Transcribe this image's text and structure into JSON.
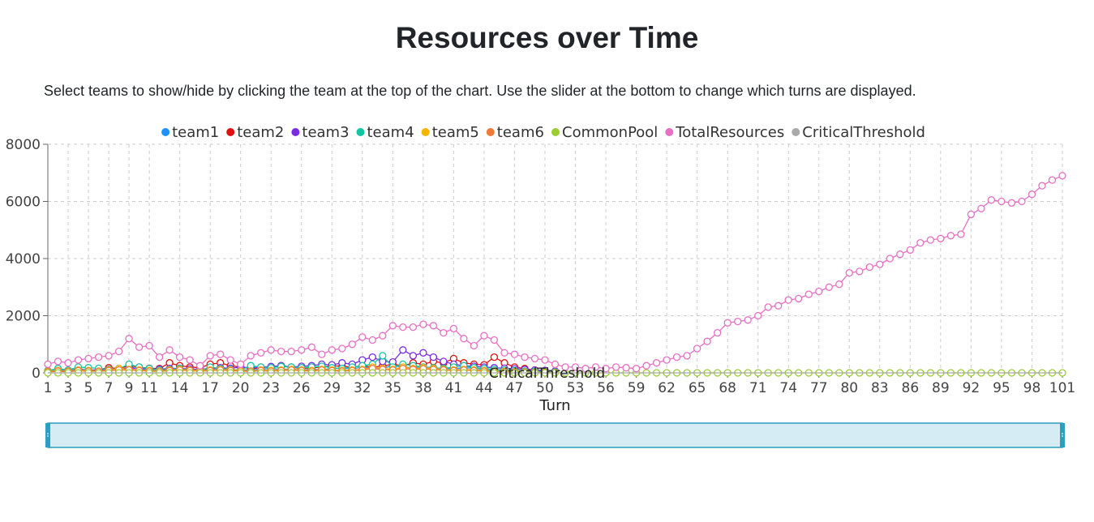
{
  "page": {
    "title": "Resources over Time",
    "instructions": "Select teams to show/hide by clicking the team at the top of the chart. Use the slider at the bottom to change which turns are displayed."
  },
  "chart_data": {
    "type": "line",
    "xlabel": "Turn",
    "ylabel": "",
    "x_range": [
      1,
      101
    ],
    "ylim": [
      0,
      8000
    ],
    "y_ticks": [
      0,
      2000,
      4000,
      6000,
      8000
    ],
    "x_ticks": [
      1,
      3,
      5,
      7,
      9,
      11,
      14,
      17,
      20,
      23,
      26,
      29,
      32,
      35,
      38,
      41,
      44,
      47,
      50,
      53,
      56,
      59,
      62,
      65,
      68,
      71,
      74,
      77,
      80,
      83,
      86,
      89,
      92,
      95,
      98,
      101
    ],
    "grid": true,
    "legend_position": "top-center",
    "reference_line": {
      "name": "CriticalThreshold",
      "label": "CriticalThreshold",
      "value": 0
    },
    "series": [
      {
        "name": "team1",
        "color": "#1e90ff",
        "end_turn": 51,
        "values": [
          60,
          120,
          80,
          150,
          90,
          110,
          130,
          100,
          200,
          150,
          90,
          120,
          80,
          100,
          90,
          70,
          150,
          120,
          100,
          90,
          110,
          130,
          150,
          120,
          140,
          100,
          130,
          110,
          150,
          160,
          140,
          200,
          180,
          160,
          250,
          200,
          180,
          220,
          170,
          160,
          140,
          180,
          160,
          120,
          100,
          90,
          80,
          60,
          80,
          70,
          50
        ]
      },
      {
        "name": "team2",
        "color": "#e01010",
        "end_turn": 51,
        "values": [
          30,
          60,
          40,
          80,
          60,
          120,
          180,
          150,
          250,
          200,
          160,
          150,
          350,
          250,
          200,
          180,
          300,
          350,
          250,
          200,
          150,
          180,
          200,
          250,
          200,
          150,
          180,
          200,
          250,
          230,
          200,
          250,
          200,
          240,
          300,
          250,
          350,
          300,
          400,
          350,
          500,
          350,
          300,
          280,
          550,
          350,
          200,
          150,
          100,
          80,
          60
        ]
      },
      {
        "name": "team3",
        "color": "#7b2be2",
        "end_turn": 51,
        "values": [
          50,
          80,
          70,
          90,
          80,
          100,
          120,
          140,
          150,
          160,
          140,
          130,
          150,
          160,
          140,
          120,
          150,
          180,
          160,
          200,
          180,
          200,
          220,
          250,
          200,
          230,
          250,
          300,
          280,
          350,
          300,
          450,
          550,
          400,
          380,
          800,
          600,
          700,
          550,
          400,
          300,
          250,
          230,
          200,
          180,
          160,
          140,
          120,
          100,
          80,
          60
        ]
      },
      {
        "name": "team4",
        "color": "#13c4a3",
        "end_turn": 51,
        "values": [
          80,
          150,
          100,
          200,
          180,
          160,
          120,
          150,
          300,
          200,
          150,
          100,
          120,
          150,
          100,
          80,
          200,
          150,
          120,
          100,
          250,
          200,
          180,
          220,
          200,
          180,
          200,
          230,
          180,
          150,
          200,
          250,
          300,
          600,
          200,
          300,
          250,
          200,
          180,
          150,
          200,
          250,
          180,
          150,
          120,
          100,
          80,
          60,
          50,
          40,
          30
        ]
      },
      {
        "name": "team5",
        "color": "#f4b400",
        "end_turn": 51,
        "values": [
          50,
          80,
          60,
          100,
          80,
          60,
          100,
          150,
          120,
          100,
          80,
          60,
          100,
          120,
          100,
          80,
          100,
          120,
          100,
          80,
          60,
          100,
          80,
          100,
          120,
          100,
          80,
          120,
          100,
          80,
          100,
          120,
          200,
          150,
          120,
          200,
          150,
          180,
          150,
          120,
          100,
          120,
          100,
          80,
          60,
          50,
          40,
          30,
          20,
          20,
          10
        ]
      },
      {
        "name": "team6",
        "color": "#f07a3a",
        "end_turn": 51,
        "values": [
          40,
          60,
          50,
          80,
          60,
          50,
          80,
          100,
          100,
          80,
          60,
          50,
          80,
          100,
          80,
          60,
          80,
          100,
          80,
          60,
          50,
          80,
          60,
          80,
          100,
          80,
          60,
          100,
          80,
          60,
          80,
          100,
          150,
          120,
          100,
          150,
          120,
          140,
          120,
          100,
          80,
          100,
          80,
          60,
          50,
          40,
          30,
          20,
          15,
          10,
          5
        ]
      },
      {
        "name": "CommonPool",
        "color": "#9acd32",
        "end_turn": 101,
        "values": [
          0,
          0,
          0,
          0,
          0,
          0,
          0,
          0,
          0,
          0,
          0,
          0,
          0,
          0,
          0,
          0,
          0,
          0,
          0,
          0,
          0,
          0,
          0,
          0,
          0,
          0,
          0,
          0,
          0,
          0,
          0,
          0,
          0,
          0,
          0,
          0,
          0,
          0,
          0,
          0,
          0,
          0,
          0,
          0,
          0,
          0,
          0,
          0,
          0,
          0,
          0,
          0,
          0,
          0,
          0,
          0,
          0,
          0,
          0,
          0,
          0,
          0,
          0,
          0,
          0,
          0,
          0,
          0,
          0,
          0,
          0,
          0,
          0,
          0,
          0,
          0,
          0,
          0,
          0,
          0,
          0,
          0,
          0,
          0,
          0,
          0,
          0,
          0,
          0,
          0,
          0,
          0,
          0,
          0,
          0,
          0,
          0,
          0,
          0,
          0,
          0
        ]
      },
      {
        "name": "TotalResources",
        "color": "#e86fc4",
        "end_turn": 101,
        "values": [
          300,
          400,
          350,
          450,
          500,
          550,
          600,
          750,
          1200,
          900,
          950,
          550,
          800,
          550,
          450,
          250,
          600,
          650,
          450,
          300,
          600,
          700,
          800,
          750,
          750,
          800,
          900,
          650,
          800,
          850,
          1000,
          1250,
          1150,
          1300,
          1650,
          1600,
          1600,
          1700,
          1650,
          1400,
          1550,
          1200,
          950,
          1300,
          1150,
          700,
          650,
          550,
          500,
          450,
          300,
          200,
          200,
          150,
          200,
          150,
          200,
          180,
          150,
          250,
          350,
          450,
          550,
          600,
          850,
          1100,
          1400,
          1750,
          1800,
          1850,
          2000,
          2300,
          2350,
          2550,
          2600,
          2750,
          2850,
          3000,
          3100,
          3500,
          3550,
          3700,
          3800,
          4000,
          4150,
          4300,
          4550,
          4650,
          4700,
          4800,
          4850,
          5550,
          5750,
          6050,
          6000,
          5950,
          6000,
          6250,
          6550,
          6750,
          6900
        ]
      },
      {
        "name": "CriticalThreshold",
        "color": "#a9a9a9",
        "end_turn": 101,
        "values": [
          0,
          0,
          0,
          0,
          0,
          0,
          0,
          0,
          0,
          0,
          0,
          0,
          0,
          0,
          0,
          0,
          0,
          0,
          0,
          0,
          0,
          0,
          0,
          0,
          0,
          0,
          0,
          0,
          0,
          0,
          0,
          0,
          0,
          0,
          0,
          0,
          0,
          0,
          0,
          0,
          0,
          0,
          0,
          0,
          0,
          0,
          0,
          0,
          0,
          0,
          0,
          0,
          0,
          0,
          0,
          0,
          0,
          0,
          0,
          0,
          0,
          0,
          0,
          0,
          0,
          0,
          0,
          0,
          0,
          0,
          0,
          0,
          0,
          0,
          0,
          0,
          0,
          0,
          0,
          0,
          0,
          0,
          0,
          0,
          0,
          0,
          0,
          0,
          0,
          0,
          0,
          0,
          0,
          0,
          0,
          0,
          0,
          0,
          0,
          0,
          0
        ]
      }
    ]
  },
  "slider": {
    "start_turn": 1,
    "end_turn": 101,
    "color": "#2a9fbf",
    "fill": "#d6ecf5"
  }
}
